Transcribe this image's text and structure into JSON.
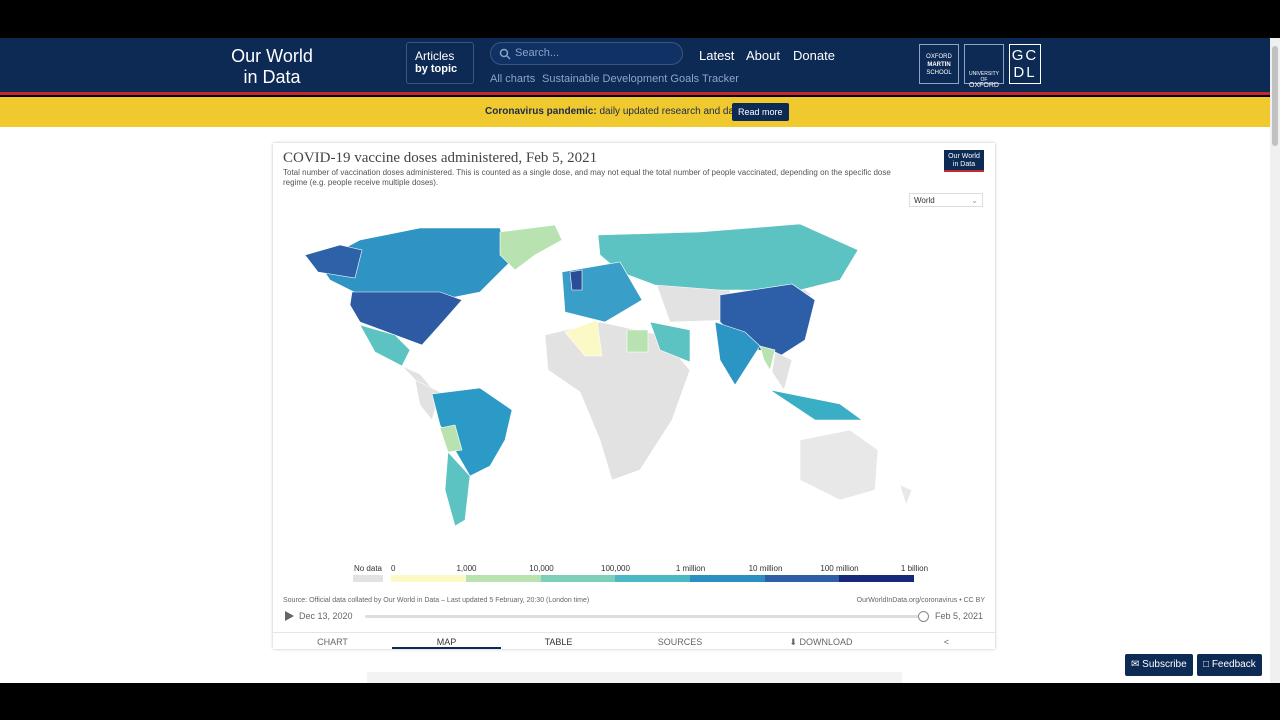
{
  "header": {
    "logo_line1": "Our World",
    "logo_line2": "in Data",
    "articles": "Articles",
    "by_topic": "by topic",
    "search_placeholder": "Search...",
    "nav": [
      "Latest",
      "About",
      "Donate"
    ],
    "subnav": [
      "All charts",
      "Sustainable Development Goals Tracker"
    ],
    "partners": {
      "oxford_martin": [
        "OXFORD",
        "MARTIN",
        "SCHOOL"
      ],
      "university": [
        "UNIVERSITY OF",
        "OXFORD"
      ],
      "gcdl": [
        "GC",
        "DL"
      ]
    }
  },
  "banner": {
    "label": "Coronavirus pandemic:",
    "text": "daily updated research and data.",
    "button": "Read more"
  },
  "chart": {
    "title": "COVID-19 vaccine doses administered, Feb 5, 2021",
    "subtitle": "Total number of vaccination doses administered. This is counted as a single dose, and may not equal the total number of people vaccinated, depending on the specific dose regime (e.g. people receive multiple doses).",
    "logo": [
      "Our World",
      "in Data"
    ],
    "region_select": "World",
    "legend": [
      "No data",
      "0",
      "1,000",
      "10,000",
      "100,000",
      "1 million",
      "10 million",
      "100 million",
      "1 billion"
    ],
    "source": "Source: Official data collated by Our World in Data – Last updated 5 February, 20:30 (London time)",
    "license": "OurWorldInData.org/coronavirus • CC BY",
    "timeline": {
      "start": "Dec 13, 2020",
      "end": "Feb 5, 2021"
    },
    "tabs": [
      "CHART",
      "MAP",
      "TABLE",
      "SOURCES",
      "DOWNLOAD"
    ]
  },
  "footer_buttons": [
    "Subscribe",
    "Feedback"
  ]
}
